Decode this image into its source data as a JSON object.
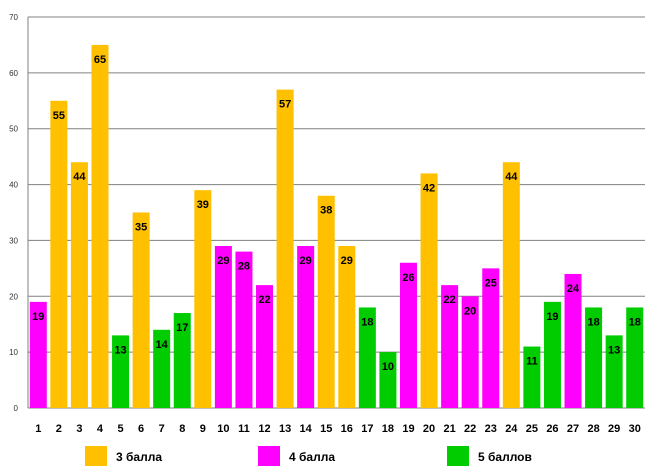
{
  "chart_data": {
    "type": "bar",
    "title": "",
    "xlabel": "",
    "ylabel": "",
    "ylim": [
      0,
      70
    ],
    "y_ticks": [
      "0",
      "10",
      "20",
      "30",
      "40",
      "50",
      "60",
      "70"
    ],
    "grid": true,
    "categories": [
      "1",
      "2",
      "3",
      "4",
      "5",
      "6",
      "7",
      "8",
      "9",
      "10",
      "11",
      "12",
      "13",
      "14",
      "15",
      "16",
      "17",
      "18",
      "19",
      "20",
      "21",
      "22",
      "23",
      "24",
      "25",
      "26",
      "27",
      "28",
      "29",
      "30"
    ],
    "values": [
      19,
      55,
      44,
      65,
      13,
      35,
      14,
      17,
      39,
      29,
      28,
      22,
      57,
      29,
      38,
      29,
      18,
      10,
      26,
      42,
      22,
      20,
      25,
      44,
      11,
      19,
      24,
      18,
      13,
      18
    ],
    "groups": [
      1,
      0,
      0,
      0,
      2,
      0,
      2,
      2,
      0,
      1,
      1,
      1,
      0,
      1,
      0,
      0,
      2,
      2,
      1,
      0,
      1,
      1,
      1,
      0,
      2,
      2,
      1,
      2,
      2,
      2
    ],
    "series": [
      {
        "name": "3 балла",
        "color": "#FFC000"
      },
      {
        "name": "4 балла",
        "color": "#FF00FF"
      },
      {
        "name": "5 баллов",
        "color": "#00CC00"
      }
    ],
    "legend_position": "bottom"
  }
}
